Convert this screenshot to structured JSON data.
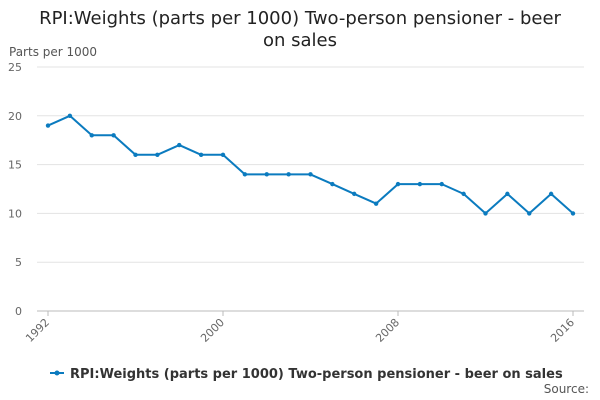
{
  "chart_data": {
    "type": "line",
    "title_line1": "RPI:Weights (parts per 1000) Two-person pensioner - beer",
    "title_line2": "on sales",
    "ylabel": "Parts per 1000",
    "ylim": [
      0,
      25
    ],
    "yticks": [
      0,
      5,
      10,
      15,
      20,
      25
    ],
    "xlim": [
      1992,
      2016
    ],
    "xticks": [
      1992,
      2000,
      2008,
      2016
    ],
    "grid": true,
    "legend_position": "bottom",
    "series": [
      {
        "name": "RPI:Weights (parts per 1000) Two-person pensioner - beer on sales",
        "color": "#0b7bbf",
        "x": [
          1992,
          1993,
          1994,
          1995,
          1996,
          1997,
          1998,
          1999,
          2000,
          2001,
          2002,
          2003,
          2004,
          2005,
          2006,
          2007,
          2008,
          2009,
          2010,
          2011,
          2012,
          2013,
          2014,
          2015,
          2016
        ],
        "values": [
          19,
          20,
          18,
          18,
          16,
          16,
          17,
          16,
          16,
          14,
          14,
          14,
          14,
          13,
          12,
          11,
          13,
          13,
          13,
          12,
          10,
          12,
          10,
          12,
          10
        ]
      }
    ],
    "source_label": "Source:"
  }
}
